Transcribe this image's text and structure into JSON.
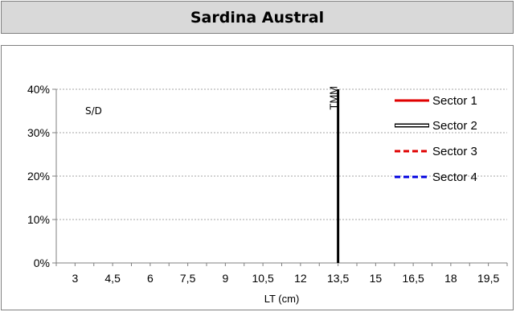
{
  "header": {
    "title": "Sardina Austral"
  },
  "chart_data": {
    "type": "line",
    "title": "Sardina Austral",
    "xlabel": "LT (cm)",
    "ylabel": "",
    "x_ticks": [
      "3",
      "4,5",
      "6",
      "7,5",
      "9",
      "10,5",
      "12",
      "13,5",
      "15",
      "16,5",
      "18",
      "19,5"
    ],
    "x_tick_values": [
      3,
      4.5,
      6,
      7.5,
      9,
      10.5,
      12,
      13.5,
      15,
      16.5,
      18,
      19.5
    ],
    "xlim": [
      2.25,
      20.25
    ],
    "y_ticks": [
      "0%",
      "10%",
      "20%",
      "30%",
      "40%"
    ],
    "y_tick_values": [
      0,
      10,
      20,
      30,
      40
    ],
    "ylim": [
      0,
      40
    ],
    "grid": "horizontal-dashed",
    "legend_position": "right",
    "series": [
      {
        "name": "Sector 1",
        "color": "#e00000",
        "style": "solid",
        "values": []
      },
      {
        "name": "Sector 2",
        "color": "#000000",
        "style": "double",
        "values": []
      },
      {
        "name": "Sector 3",
        "color": "#e00000",
        "style": "dashed",
        "values": []
      },
      {
        "name": "Sector 4",
        "color": "#0000e0",
        "style": "dashed",
        "values": []
      }
    ],
    "annotations": {
      "no_data": "S/D",
      "tmm_label": "TMM",
      "tmm_x": 13.5,
      "tmm_y_top": 40
    }
  }
}
